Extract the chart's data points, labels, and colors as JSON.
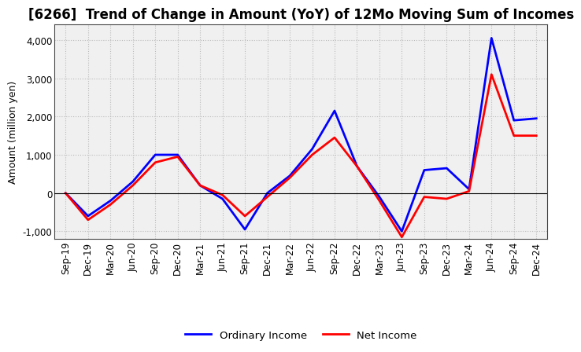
{
  "title": "[6266]  Trend of Change in Amount (YoY) of 12Mo Moving Sum of Incomes",
  "ylabel": "Amount (million yen)",
  "x_labels": [
    "Sep-19",
    "Dec-19",
    "Mar-20",
    "Jun-20",
    "Sep-20",
    "Dec-20",
    "Mar-21",
    "Jun-21",
    "Sep-21",
    "Dec-21",
    "Mar-22",
    "Jun-22",
    "Sep-22",
    "Dec-22",
    "Mar-23",
    "Jun-23",
    "Sep-23",
    "Dec-23",
    "Mar-24",
    "Jun-24",
    "Sep-24",
    "Dec-24"
  ],
  "ordinary_income": [
    0,
    -600,
    -200,
    300,
    1000,
    1000,
    200,
    -150,
    -950,
    0,
    450,
    1150,
    2150,
    700,
    -100,
    -1000,
    600,
    650,
    100,
    4050,
    1900,
    1950
  ],
  "net_income": [
    0,
    -700,
    -300,
    200,
    800,
    950,
    200,
    -50,
    -600,
    -100,
    400,
    1000,
    1450,
    700,
    -200,
    -1150,
    -100,
    -150,
    50,
    3100,
    1500,
    1500
  ],
  "ordinary_income_color": "#0000ff",
  "net_income_color": "#ff0000",
  "line_width": 2.0,
  "ylim": [
    -1200,
    4400
  ],
  "yticks": [
    -1000,
    0,
    1000,
    2000,
    3000,
    4000
  ],
  "plot_bg_color": "#f0f0f0",
  "fig_bg_color": "#ffffff",
  "grid_color": "#bbbbbb",
  "legend_ordinary": "Ordinary Income",
  "legend_net": "Net Income",
  "title_fontsize": 12,
  "axis_fontsize": 8.5,
  "ylabel_fontsize": 9
}
